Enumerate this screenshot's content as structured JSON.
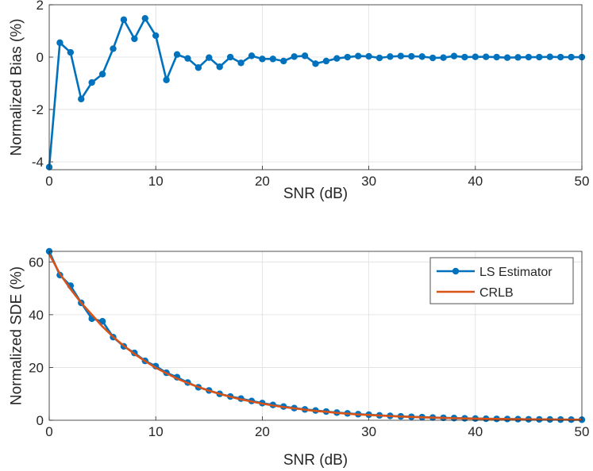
{
  "colors": {
    "ls": "#0072BD",
    "crlb": "#D95319",
    "grid": "#dfdfdf",
    "axis": "#262626"
  },
  "chart_data": [
    {
      "type": "line",
      "title": "",
      "xlabel": "SNR (dB)",
      "ylabel": "Normalized Bias (%)",
      "xlim": [
        0,
        50
      ],
      "ylim": [
        -4.3,
        2
      ],
      "xticks": [
        0,
        10,
        20,
        30,
        40,
        50
      ],
      "yticks": [
        -4,
        -2,
        0,
        2
      ],
      "grid": true,
      "series": [
        {
          "name": "LS Estimator",
          "marker": "circle",
          "x": [
            0,
            1,
            2,
            3,
            4,
            5,
            6,
            7,
            8,
            9,
            10,
            11,
            12,
            13,
            14,
            15,
            16,
            17,
            18,
            19,
            20,
            21,
            22,
            23,
            24,
            25,
            26,
            27,
            28,
            29,
            30,
            31,
            32,
            33,
            34,
            35,
            36,
            37,
            38,
            39,
            40,
            41,
            42,
            43,
            44,
            45,
            46,
            47,
            48,
            49,
            50
          ],
          "values": [
            -4.2,
            0.55,
            0.18,
            -1.6,
            -0.97,
            -0.65,
            0.32,
            1.43,
            0.7,
            1.48,
            0.82,
            -0.87,
            0.1,
            -0.05,
            -0.4,
            -0.02,
            -0.37,
            0.0,
            -0.22,
            0.05,
            -0.07,
            -0.07,
            -0.15,
            0.02,
            0.05,
            -0.25,
            -0.15,
            -0.05,
            0.0,
            0.04,
            0.03,
            -0.03,
            0.02,
            0.04,
            0.03,
            0.02,
            -0.03,
            -0.02,
            0.04,
            0.0,
            0.01,
            0.01,
            0.0,
            -0.02,
            -0.01,
            0.0,
            0.0,
            0.01,
            0.0,
            0.0,
            0.0
          ]
        }
      ]
    },
    {
      "type": "line",
      "title": "",
      "xlabel": "SNR (dB)",
      "ylabel": "Normalized SDE (%)",
      "xlim": [
        0,
        50
      ],
      "ylim": [
        0,
        64
      ],
      "xticks": [
        0,
        10,
        20,
        30,
        40,
        50
      ],
      "yticks": [
        0,
        20,
        40,
        60
      ],
      "grid": true,
      "legend": "top-right",
      "series": [
        {
          "name": "LS Estimator",
          "marker": "circle",
          "x": [
            0,
            1,
            2,
            3,
            4,
            5,
            6,
            7,
            8,
            9,
            10,
            11,
            12,
            13,
            14,
            15,
            16,
            17,
            18,
            19,
            20,
            21,
            22,
            23,
            24,
            25,
            26,
            27,
            28,
            29,
            30,
            31,
            32,
            33,
            34,
            35,
            36,
            37,
            38,
            39,
            40,
            41,
            42,
            43,
            44,
            45,
            46,
            47,
            48,
            49,
            50
          ],
          "values": [
            64,
            55,
            51,
            44.5,
            38.5,
            37.5,
            31.5,
            28,
            25.5,
            22.5,
            20.5,
            18,
            16.3,
            14.3,
            12.5,
            11.3,
            10,
            9,
            8.2,
            7.3,
            6.5,
            5.8,
            5.2,
            4.6,
            4.1,
            3.7,
            3.3,
            2.9,
            2.6,
            2.3,
            2.1,
            1.85,
            1.65,
            1.47,
            1.31,
            1.17,
            1.04,
            0.93,
            0.83,
            0.74,
            0.66,
            0.59,
            0.52,
            0.47,
            0.42,
            0.37,
            0.33,
            0.3,
            0.26,
            0.24,
            0.21
          ]
        },
        {
          "name": "CRLB",
          "marker": "none",
          "x": [
            0,
            1,
            2,
            3,
            4,
            5,
            6,
            7,
            8,
            9,
            10,
            11,
            12,
            13,
            14,
            15,
            16,
            17,
            18,
            19,
            20,
            21,
            22,
            23,
            24,
            25,
            26,
            27,
            28,
            29,
            30,
            31,
            32,
            33,
            34,
            35,
            36,
            37,
            38,
            39,
            40,
            41,
            42,
            43,
            44,
            45,
            46,
            47,
            48,
            49,
            50
          ],
          "values": [
            63,
            55.5,
            49.7,
            44.5,
            40,
            35.5,
            31.6,
            28.2,
            25.1,
            22.4,
            19.9,
            17.8,
            15.8,
            14.1,
            12.6,
            11.2,
            10,
            8.9,
            7.9,
            7.1,
            6.3,
            5.6,
            5.0,
            4.5,
            4.0,
            3.5,
            3.2,
            2.8,
            2.5,
            2.2,
            2.0,
            1.78,
            1.59,
            1.41,
            1.26,
            1.12,
            1.0,
            0.89,
            0.79,
            0.71,
            0.63,
            0.56,
            0.5,
            0.45,
            0.4,
            0.35,
            0.32,
            0.28,
            0.25,
            0.22,
            0.2
          ]
        }
      ]
    }
  ]
}
